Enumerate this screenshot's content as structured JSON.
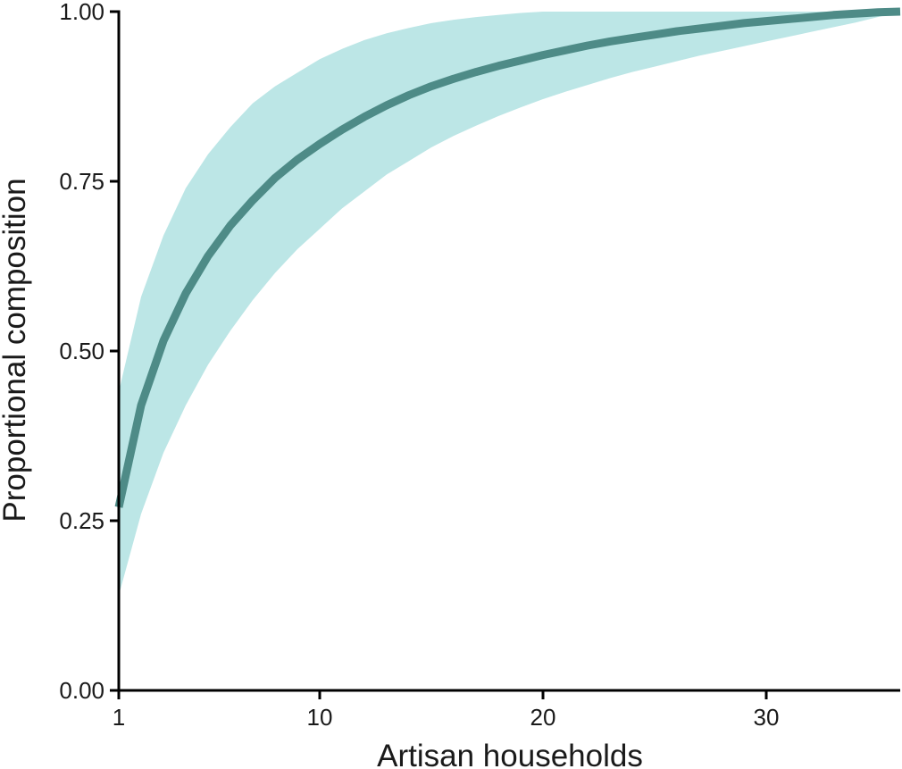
{
  "chart_data": {
    "type": "line",
    "title": "",
    "xlabel": "Artisan households",
    "ylabel": "Proportional composition",
    "xlim": [
      1,
      36
    ],
    "ylim": [
      0,
      1
    ],
    "x_ticks": [
      1,
      10,
      20,
      30
    ],
    "x_tick_labels": [
      "1",
      "10",
      "20",
      "30"
    ],
    "y_ticks": [
      0,
      0.25,
      0.5,
      0.75,
      1
    ],
    "y_tick_labels": [
      "0.00",
      "0.25",
      "0.50",
      "0.75",
      "1.00"
    ],
    "grid": false,
    "legend": "none",
    "colors": {
      "line": "#4e8b87",
      "band": "#bce6e6",
      "axis": "#000000"
    },
    "series": [
      {
        "x": [
          1,
          2,
          3,
          4,
          5,
          6,
          7,
          8,
          9,
          10,
          11,
          12,
          13,
          14,
          15,
          16,
          17,
          18,
          19,
          20,
          21,
          22,
          23,
          24,
          25,
          26,
          27,
          28,
          29,
          30,
          31,
          32,
          33,
          34,
          35,
          36
        ],
        "y": [
          0.27,
          0.42,
          0.515,
          0.585,
          0.64,
          0.685,
          0.722,
          0.755,
          0.782,
          0.805,
          0.826,
          0.845,
          0.862,
          0.877,
          0.89,
          0.901,
          0.911,
          0.92,
          0.928,
          0.936,
          0.943,
          0.95,
          0.956,
          0.961,
          0.966,
          0.971,
          0.975,
          0.979,
          0.983,
          0.986,
          0.989,
          0.992,
          0.995,
          0.997,
          0.999,
          1.0
        ],
        "lower": [
          0.14,
          0.26,
          0.35,
          0.42,
          0.48,
          0.53,
          0.575,
          0.615,
          0.65,
          0.68,
          0.71,
          0.735,
          0.76,
          0.78,
          0.8,
          0.817,
          0.832,
          0.846,
          0.859,
          0.871,
          0.882,
          0.892,
          0.902,
          0.911,
          0.919,
          0.927,
          0.935,
          0.942,
          0.949,
          0.956,
          0.963,
          0.97,
          0.977,
          0.984,
          0.992,
          1.0
        ],
        "upper": [
          0.44,
          0.58,
          0.67,
          0.74,
          0.79,
          0.83,
          0.865,
          0.89,
          0.91,
          0.93,
          0.945,
          0.958,
          0.968,
          0.976,
          0.983,
          0.988,
          0.992,
          0.995,
          0.998,
          1.0,
          1.0,
          1.0,
          1.0,
          1.0,
          1.0,
          1.0,
          1.0,
          1.0,
          1.0,
          1.0,
          1.0,
          1.0,
          1.0,
          1.0,
          1.0,
          1.0
        ]
      }
    ]
  }
}
